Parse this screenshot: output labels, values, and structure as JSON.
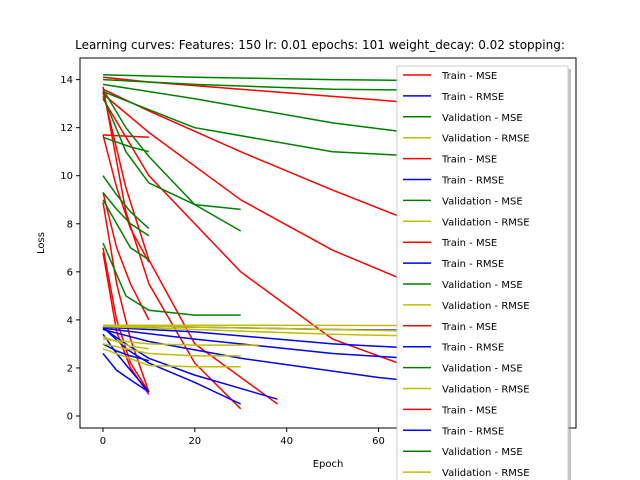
{
  "chart_data": {
    "type": "line",
    "title": "Learning curves: Features: 150 lr: 0.01 epochs: 101 weight_decay: 0.02 stopping:",
    "xlabel": "Epoch",
    "ylabel": "Loss",
    "xlim": [
      -5,
      103
    ],
    "ylim": [
      -0.5,
      14.9
    ],
    "xticks": [
      0,
      20,
      40,
      60
    ],
    "yticks": [
      0,
      2,
      4,
      6,
      8,
      10,
      12,
      14
    ],
    "grid": false,
    "legend_position": "right",
    "colors": {
      "Train - MSE": "#ff0000",
      "Train - RMSE": "#0000ff",
      "Validation - MSE": "#008000",
      "Validation - RMSE": "#bfbf00"
    },
    "legend": [
      "Train - MSE",
      "Train - RMSE",
      "Validation - MSE",
      "Validation - RMSE",
      "Train - MSE",
      "Train - RMSE",
      "Validation - MSE",
      "Validation - RMSE",
      "Train - MSE",
      "Train - RMSE",
      "Validation - MSE",
      "Validation - RMSE",
      "Train - MSE",
      "Train - RMSE",
      "Validation - MSE",
      "Validation - RMSE",
      "Train - MSE",
      "Train - RMSE",
      "Validation - MSE",
      "Validation - RMSE"
    ],
    "series": [
      {
        "name": "Train - MSE",
        "x": [
          0,
          10,
          30,
          50,
          70,
          100
        ],
        "y": [
          14.1,
          13.9,
          13.6,
          13.3,
          13.0,
          12.4
        ]
      },
      {
        "name": "Train - MSE",
        "x": [
          0,
          10,
          30,
          50,
          70,
          100
        ],
        "y": [
          13.6,
          12.7,
          11.0,
          9.4,
          7.9,
          6.0
        ]
      },
      {
        "name": "Train - MSE",
        "x": [
          0,
          10,
          30,
          50,
          70,
          100
        ],
        "y": [
          13.4,
          11.8,
          9.0,
          6.9,
          5.3,
          3.6
        ]
      },
      {
        "name": "Train - MSE",
        "x": [
          0,
          5,
          10,
          20,
          30
        ],
        "y": [
          13.7,
          8.5,
          5.5,
          2.2,
          0.3
        ]
      },
      {
        "name": "Train - MSE",
        "x": [
          0,
          5,
          10,
          20,
          38
        ],
        "y": [
          13.5,
          9.5,
          6.5,
          3.0,
          0.5
        ]
      },
      {
        "name": "Train - MSE",
        "x": [
          0,
          10,
          30,
          50,
          70,
          100
        ],
        "y": [
          13.2,
          10.0,
          6.0,
          3.2,
          1.8,
          0.6
        ]
      },
      {
        "name": "Train - MSE",
        "x": [
          0,
          3,
          6,
          10
        ],
        "y": [
          11.7,
          9.5,
          7.8,
          6.4
        ]
      },
      {
        "name": "Train - MSE",
        "x": [
          0,
          3,
          6,
          10
        ],
        "y": [
          9.3,
          7.0,
          5.5,
          4.0
        ]
      },
      {
        "name": "Train - MSE",
        "x": [
          0,
          3,
          6,
          10
        ],
        "y": [
          8.9,
          5.5,
          3.2,
          1.0
        ]
      },
      {
        "name": "Train - MSE",
        "x": [
          0,
          3,
          6,
          10
        ],
        "y": [
          7.0,
          4.0,
          2.2,
          1.0
        ]
      },
      {
        "name": "Train - MSE",
        "x": [
          0,
          3,
          6,
          10
        ],
        "y": [
          6.8,
          3.5,
          2.0,
          0.9
        ]
      },
      {
        "name": "Train - MSE",
        "x": [
          0,
          10
        ],
        "y": [
          11.7,
          11.6
        ]
      },
      {
        "name": "Train - RMSE",
        "x": [
          0,
          20,
          50,
          100
        ],
        "y": [
          3.75,
          3.7,
          3.6,
          3.5
        ]
      },
      {
        "name": "Train - RMSE",
        "x": [
          0,
          20,
          50,
          100
        ],
        "y": [
          3.7,
          3.5,
          3.0,
          2.5
        ]
      },
      {
        "name": "Train - RMSE",
        "x": [
          0,
          20,
          50,
          100
        ],
        "y": [
          3.65,
          3.2,
          2.6,
          2.0
        ]
      },
      {
        "name": "Train - RMSE",
        "x": [
          0,
          10,
          30,
          60,
          100
        ],
        "y": [
          3.6,
          3.1,
          2.4,
          1.6,
          0.8
        ]
      },
      {
        "name": "Train - RMSE",
        "x": [
          0,
          5,
          10,
          20,
          30
        ],
        "y": [
          3.7,
          2.8,
          2.2,
          1.4,
          0.5
        ]
      },
      {
        "name": "Train - RMSE",
        "x": [
          0,
          5,
          10,
          20,
          38
        ],
        "y": [
          3.65,
          3.0,
          2.4,
          1.7,
          0.7
        ]
      },
      {
        "name": "Train - RMSE",
        "x": [
          0,
          3,
          6,
          10
        ],
        "y": [
          3.4,
          2.6,
          1.9,
          1.0
        ]
      },
      {
        "name": "Train - RMSE",
        "x": [
          0,
          3,
          6,
          10
        ],
        "y": [
          2.6,
          1.9,
          1.5,
          1.0
        ]
      },
      {
        "name": "Train - RMSE",
        "x": [
          0,
          3,
          6,
          10
        ],
        "y": [
          3.0,
          2.7,
          2.5,
          2.3
        ]
      },
      {
        "name": "Validation - MSE",
        "x": [
          0,
          20,
          50,
          100
        ],
        "y": [
          14.2,
          14.1,
          14.0,
          13.9
        ]
      },
      {
        "name": "Validation - MSE",
        "x": [
          0,
          20,
          50,
          100
        ],
        "y": [
          14.0,
          13.8,
          13.6,
          13.5
        ]
      },
      {
        "name": "Validation - MSE",
        "x": [
          0,
          20,
          50,
          100
        ],
        "y": [
          13.8,
          13.2,
          12.2,
          11.0
        ]
      },
      {
        "name": "Validation - MSE",
        "x": [
          0,
          20,
          50,
          100
        ],
        "y": [
          13.5,
          12.0,
          11.0,
          10.5
        ]
      },
      {
        "name": "Validation - MSE",
        "x": [
          0,
          5,
          10,
          20,
          30
        ],
        "y": [
          13.6,
          12.0,
          10.8,
          8.8,
          7.7
        ]
      },
      {
        "name": "Validation - MSE",
        "x": [
          0,
          5,
          10,
          20,
          30
        ],
        "y": [
          13.3,
          11.0,
          9.7,
          8.8,
          8.6
        ]
      },
      {
        "name": "Validation - MSE",
        "x": [
          0,
          5,
          10,
          20,
          30
        ],
        "y": [
          7.2,
          5.0,
          4.4,
          4.2,
          4.2
        ]
      },
      {
        "name": "Validation - MSE",
        "x": [
          0,
          3,
          6,
          10
        ],
        "y": [
          10.0,
          9.2,
          8.5,
          7.8
        ]
      },
      {
        "name": "Validation - MSE",
        "x": [
          0,
          3,
          6,
          10
        ],
        "y": [
          9.3,
          8.6,
          8.0,
          7.5
        ]
      },
      {
        "name": "Validation - MSE",
        "x": [
          0,
          3,
          6,
          10
        ],
        "y": [
          11.6,
          11.4,
          11.2,
          11.0
        ]
      },
      {
        "name": "Validation - MSE",
        "x": [
          0,
          3,
          6,
          10
        ],
        "y": [
          9.0,
          8.0,
          7.0,
          6.5
        ]
      },
      {
        "name": "Validation - RMSE",
        "x": [
          0,
          20,
          50,
          100
        ],
        "y": [
          3.78,
          3.78,
          3.77,
          3.76
        ]
      },
      {
        "name": "Validation - RMSE",
        "x": [
          0,
          20,
          50,
          100
        ],
        "y": [
          3.75,
          3.7,
          3.6,
          3.4
        ]
      },
      {
        "name": "Validation - RMSE",
        "x": [
          0,
          20,
          50,
          100
        ],
        "y": [
          3.72,
          3.6,
          3.4,
          3.2
        ]
      },
      {
        "name": "Validation - RMSE",
        "x": [
          0,
          10,
          20,
          34
        ],
        "y": [
          3.2,
          3.0,
          2.95,
          2.95
        ]
      },
      {
        "name": "Validation - RMSE",
        "x": [
          0,
          10,
          20,
          30
        ],
        "y": [
          3.0,
          2.6,
          2.5,
          2.5
        ]
      },
      {
        "name": "Validation - RMSE",
        "x": [
          0,
          10,
          20,
          30
        ],
        "y": [
          2.8,
          2.1,
          2.05,
          2.05
        ]
      },
      {
        "name": "Validation - RMSE",
        "x": [
          0,
          3,
          6,
          10
        ],
        "y": [
          3.3,
          3.1,
          2.9,
          2.8
        ]
      }
    ]
  }
}
